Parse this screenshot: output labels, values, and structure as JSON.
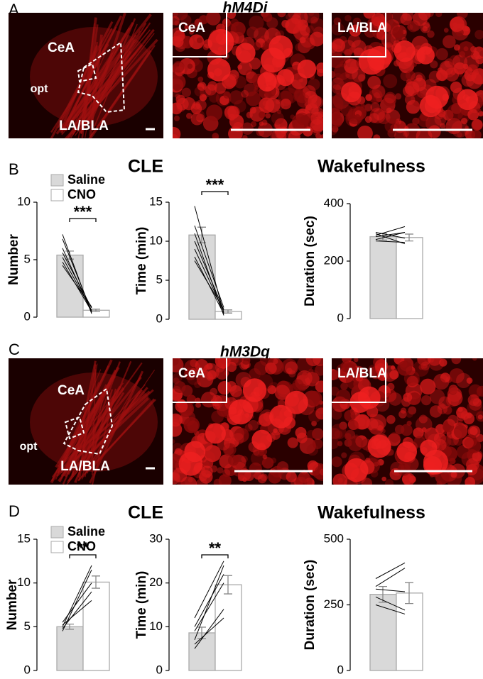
{
  "panel_labels": [
    "A",
    "B",
    "C",
    "D"
  ],
  "image_rows": [
    {
      "title": "hM4Di",
      "overview_labels": [
        "CeA",
        "opt",
        "LA/BLA"
      ],
      "zoom_labels": [
        "CeA",
        "LA/BLA"
      ]
    },
    {
      "title": "hM3Dq",
      "overview_labels": [
        "CeA",
        "opt",
        "LA/BLA"
      ],
      "zoom_labels": [
        "CeA",
        "LA/BLA"
      ]
    }
  ],
  "chart_rows": [
    {
      "legend": [
        {
          "name": "Saline",
          "color": "#d9d9d9"
        },
        {
          "name": "CNO",
          "color": "#ffffff"
        }
      ],
      "group_titles": [
        "CLE",
        "Wakefulness"
      ]
    },
    {
      "legend": [
        {
          "name": "Saline",
          "color": "#d9d9d9"
        },
        {
          "name": "CNO",
          "color": "#ffffff"
        }
      ],
      "group_titles": [
        "CLE",
        "Wakefulness"
      ]
    }
  ],
  "chart_data": [
    {
      "type": "bar",
      "ylabel": "Number",
      "ylim": [
        0,
        10
      ],
      "yticks": [
        0,
        5,
        10
      ],
      "values": [
        5.4,
        0.6
      ],
      "errors": [
        0.35,
        0.1
      ],
      "significance": "***",
      "pairs": [
        [
          7.2,
          0.3
        ],
        [
          6.8,
          0.5
        ],
        [
          6.0,
          0.4
        ],
        [
          5.6,
          0.8
        ],
        [
          5.2,
          0.6
        ],
        [
          4.8,
          0.5
        ],
        [
          4.5,
          0.9
        ]
      ]
    },
    {
      "type": "bar",
      "ylabel": "Time (min)",
      "ylim": [
        0,
        15
      ],
      "yticks": [
        0,
        5,
        10,
        15
      ],
      "values": [
        10.8,
        1.0
      ],
      "errors": [
        1.0,
        0.2
      ],
      "significance": "***",
      "pairs": [
        [
          14.5,
          0.8
        ],
        [
          12,
          1.5
        ],
        [
          11,
          0.5
        ],
        [
          10,
          1.2
        ],
        [
          9,
          1.0
        ],
        [
          8,
          0.7
        ],
        [
          7.5,
          1.3
        ]
      ]
    },
    {
      "type": "bar",
      "ylabel": "Duration (sec)",
      "ylim": [
        0,
        400
      ],
      "yticks": [
        0,
        200,
        400
      ],
      "values": [
        285,
        282
      ],
      "errors": [
        12,
        12
      ],
      "pairs": [
        [
          300,
          280
        ],
        [
          290,
          320
        ],
        [
          275,
          300
        ],
        [
          270,
          265
        ],
        [
          295,
          260
        ],
        [
          285,
          300
        ]
      ]
    },
    {
      "type": "bar",
      "ylabel": "Number",
      "ylim": [
        0,
        15
      ],
      "yticks": [
        0,
        5,
        10,
        15
      ],
      "values": [
        5.0,
        10.1
      ],
      "errors": [
        0.3,
        0.7
      ],
      "significance": "**",
      "pairs": [
        [
          4.5,
          11.5
        ],
        [
          5.0,
          12.0
        ],
        [
          5.5,
          10.0
        ],
        [
          4.8,
          9.0
        ],
        [
          5.2,
          8.0
        ]
      ]
    },
    {
      "type": "bar",
      "ylabel": "Time (min)",
      "ylim": [
        0,
        30
      ],
      "yticks": [
        0,
        10,
        20,
        30
      ],
      "values": [
        8.6,
        19.6
      ],
      "errors": [
        1.3,
        2.1
      ],
      "significance": "**",
      "pairs": [
        [
          5,
          14
        ],
        [
          7,
          24
        ],
        [
          10,
          22
        ],
        [
          12,
          25
        ],
        [
          9,
          20
        ],
        [
          6,
          12
        ]
      ]
    },
    {
      "type": "bar",
      "ylabel": "Duration (sec)",
      "ylim": [
        0,
        500
      ],
      "yticks": [
        0,
        250,
        500
      ],
      "values": [
        290,
        295
      ],
      "errors": [
        30,
        40
      ],
      "pairs": [
        [
          350,
          410
        ],
        [
          320,
          390
        ],
        [
          280,
          230
        ],
        [
          250,
          215
        ],
        [
          310,
          300
        ]
      ]
    }
  ]
}
